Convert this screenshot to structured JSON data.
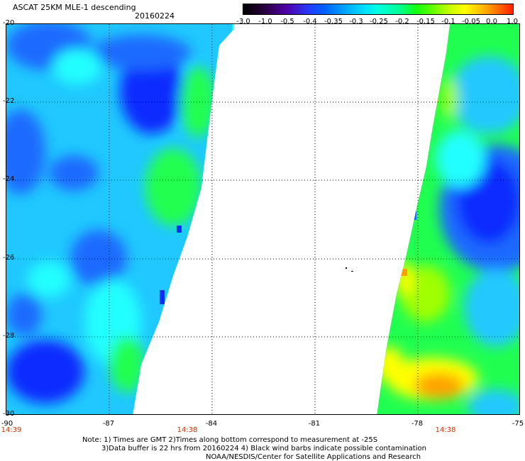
{
  "header": {
    "title": "ASCAT 25KM MLE-1 descending",
    "date": "20160224"
  },
  "colorbar": {
    "labels": [
      "-3.0",
      "-1.0",
      "-0.5",
      "-0.4",
      "-0.35",
      "-0.3",
      "-0.25",
      "-0.2",
      "-0.15",
      "-0.1",
      "-0.05",
      "0.0",
      "1.0"
    ]
  },
  "map": {
    "lon_range": [
      -90,
      -75
    ],
    "lat_range": [
      -30,
      -20
    ],
    "x_ticks": [
      "-90",
      "-87",
      "-84",
      "-81",
      "-78",
      "-75"
    ],
    "y_ticks": [
      "-20",
      "-22",
      "-24",
      "-26",
      "-28",
      "-30"
    ],
    "swath_colors": {
      "deep_blue": "#0a2cff",
      "blue": "#1e6bff",
      "sky": "#20c8ff",
      "cyan": "#20ffff",
      "green": "#20ff50",
      "lime": "#a0ff00",
      "yellow": "#ffff00",
      "orange": "#ffa000"
    }
  },
  "times": [
    "14:39",
    "14:38",
    "14:38"
  ],
  "notes": {
    "line1": "Note: 1) Times are GMT 2)Times along bottom correspond to measurement at -25S",
    "line2": "3)Data buffer is 22 hrs from 20160224 4) Black wind barbs indicate possible contamination",
    "line3": "NOAA/NESDIS/Center for Satellite Applications and Research"
  }
}
